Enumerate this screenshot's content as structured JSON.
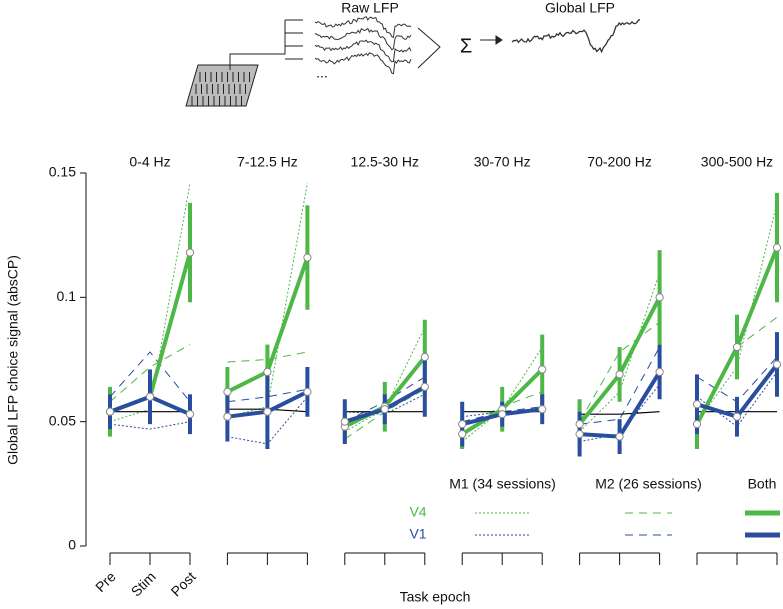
{
  "diagram": {
    "raw_label": "Raw LFP",
    "global_label": "Global LFP",
    "sum_symbol": "Σ",
    "ellipsis": "..."
  },
  "figure": {
    "ylabel": "Global LFP choice signal (absCP)",
    "xlabel": "Task epoch",
    "categories": [
      "Pre",
      "Stim",
      "Post"
    ],
    "ylim": [
      0,
      0.15
    ],
    "yticks": [
      0,
      0.05,
      0.1,
      0.15
    ],
    "legend": {
      "columns": [
        "M1 (34 sessions)",
        "M2 (26 sessions)",
        "Both"
      ],
      "rows": [
        "V4",
        "V1"
      ]
    }
  },
  "chart_data": [
    {
      "type": "line",
      "title": "0-4 Hz",
      "series": [
        {
          "color": "#4db848",
          "style": "both",
          "values": [
            0.054,
            0.06,
            0.118
          ],
          "errors": [
            0.01,
            0.01,
            0.02
          ]
        },
        {
          "color": "#2a4da0",
          "style": "both",
          "values": [
            0.054,
            0.06,
            0.053
          ],
          "errors": [
            0.007,
            0.011,
            0.008
          ]
        },
        {
          "color": "#4db848",
          "style": "dotted",
          "values": [
            0.05,
            0.055,
            0.146
          ]
        },
        {
          "color": "#2a4da0",
          "style": "dotted",
          "values": [
            0.049,
            0.047,
            0.05
          ]
        },
        {
          "color": "#4db848",
          "style": "dashed",
          "values": [
            0.058,
            0.072,
            0.081
          ]
        },
        {
          "color": "#2a4da0",
          "style": "dashed",
          "values": [
            0.06,
            0.078,
            0.058
          ]
        },
        {
          "color": "#000000",
          "style": "thin",
          "values": [
            0.054,
            0.054,
            0.054
          ]
        }
      ]
    },
    {
      "type": "line",
      "title": "7-12.5 Hz",
      "series": [
        {
          "color": "#4db848",
          "style": "both",
          "values": [
            0.062,
            0.07,
            0.116
          ],
          "errors": [
            0.01,
            0.011,
            0.021
          ]
        },
        {
          "color": "#2a4da0",
          "style": "both",
          "values": [
            0.052,
            0.054,
            0.062
          ],
          "errors": [
            0.01,
            0.015,
            0.01
          ]
        },
        {
          "color": "#4db848",
          "style": "dotted",
          "values": [
            0.052,
            0.056,
            0.146
          ]
        },
        {
          "color": "#2a4da0",
          "style": "dotted",
          "values": [
            0.044,
            0.041,
            0.06
          ]
        },
        {
          "color": "#4db848",
          "style": "dashed",
          "values": [
            0.074,
            0.075,
            0.078
          ]
        },
        {
          "color": "#2a4da0",
          "style": "dashed",
          "values": [
            0.058,
            0.06,
            0.063
          ]
        },
        {
          "color": "#000000",
          "style": "thin",
          "values": [
            0.055,
            0.055,
            0.054
          ]
        }
      ]
    },
    {
      "type": "line",
      "title": "12.5-30 Hz",
      "series": [
        {
          "color": "#4db848",
          "style": "both",
          "values": [
            0.048,
            0.056,
            0.076
          ],
          "errors": [
            0.006,
            0.01,
            0.015
          ]
        },
        {
          "color": "#2a4da0",
          "style": "both",
          "values": [
            0.05,
            0.055,
            0.064
          ],
          "errors": [
            0.009,
            0.006,
            0.012
          ]
        },
        {
          "color": "#4db848",
          "style": "dotted",
          "values": [
            0.046,
            0.055,
            0.088
          ]
        },
        {
          "color": "#2a4da0",
          "style": "dotted",
          "values": [
            0.054,
            0.053,
            0.061
          ]
        },
        {
          "color": "#4db848",
          "style": "dashed",
          "values": [
            0.043,
            0.054,
            0.063
          ]
        },
        {
          "color": "#2a4da0",
          "style": "dashed",
          "values": [
            0.05,
            0.058,
            0.068
          ]
        },
        {
          "color": "#000000",
          "style": "thin",
          "values": [
            0.054,
            0.054,
            0.054
          ]
        }
      ]
    },
    {
      "type": "line",
      "title": "30-70 Hz",
      "series": [
        {
          "color": "#4db848",
          "style": "both",
          "values": [
            0.045,
            0.055,
            0.071
          ],
          "errors": [
            0.006,
            0.009,
            0.014
          ]
        },
        {
          "color": "#2a4da0",
          "style": "both",
          "values": [
            0.049,
            0.053,
            0.055
          ],
          "errors": [
            0.009,
            0.005,
            0.006
          ]
        },
        {
          "color": "#4db848",
          "style": "dotted",
          "values": [
            0.042,
            0.055,
            0.08
          ]
        },
        {
          "color": "#2a4da0",
          "style": "dotted",
          "values": [
            0.052,
            0.054,
            0.055
          ]
        },
        {
          "color": "#4db848",
          "style": "dashed",
          "values": [
            0.048,
            0.056,
            0.062
          ]
        },
        {
          "color": "#2a4da0",
          "style": "dashed",
          "values": [
            0.05,
            0.054,
            0.056
          ]
        },
        {
          "color": "#000000",
          "style": "thin",
          "values": [
            0.054,
            0.054,
            0.054
          ]
        }
      ]
    },
    {
      "type": "line",
      "title": "70-200 Hz",
      "series": [
        {
          "color": "#4db848",
          "style": "both",
          "values": [
            0.049,
            0.069,
            0.1
          ],
          "errors": [
            0.01,
            0.011,
            0.019
          ]
        },
        {
          "color": "#2a4da0",
          "style": "both",
          "values": [
            0.045,
            0.044,
            0.07
          ],
          "errors": [
            0.009,
            0.007,
            0.011
          ]
        },
        {
          "color": "#4db848",
          "style": "dotted",
          "values": [
            0.046,
            0.062,
            0.11
          ]
        },
        {
          "color": "#2a4da0",
          "style": "dotted",
          "values": [
            0.042,
            0.045,
            0.065
          ]
        },
        {
          "color": "#4db848",
          "style": "dashed",
          "values": [
            0.05,
            0.078,
            0.09
          ]
        },
        {
          "color": "#2a4da0",
          "style": "dashed",
          "values": [
            0.049,
            0.051,
            0.08
          ]
        },
        {
          "color": "#000000",
          "style": "thin",
          "values": [
            0.053,
            0.053,
            0.054
          ]
        }
      ]
    },
    {
      "type": "line",
      "title": "300-500 Hz",
      "series": [
        {
          "color": "#4db848",
          "style": "both",
          "values": [
            0.049,
            0.08,
            0.12
          ],
          "errors": [
            0.01,
            0.013,
            0.022
          ]
        },
        {
          "color": "#2a4da0",
          "style": "both",
          "values": [
            0.057,
            0.052,
            0.073
          ],
          "errors": [
            0.012,
            0.008,
            0.013
          ]
        },
        {
          "color": "#4db848",
          "style": "dotted",
          "values": [
            0.05,
            0.072,
            0.138
          ]
        },
        {
          "color": "#2a4da0",
          "style": "dotted",
          "values": [
            0.06,
            0.048,
            0.07
          ]
        },
        {
          "color": "#4db848",
          "style": "dashed",
          "values": [
            0.05,
            0.08,
            0.092
          ]
        },
        {
          "color": "#2a4da0",
          "style": "dashed",
          "values": [
            0.068,
            0.058,
            0.076
          ]
        },
        {
          "color": "#000000",
          "style": "thin",
          "values": [
            0.054,
            0.054,
            0.054
          ]
        }
      ]
    }
  ]
}
